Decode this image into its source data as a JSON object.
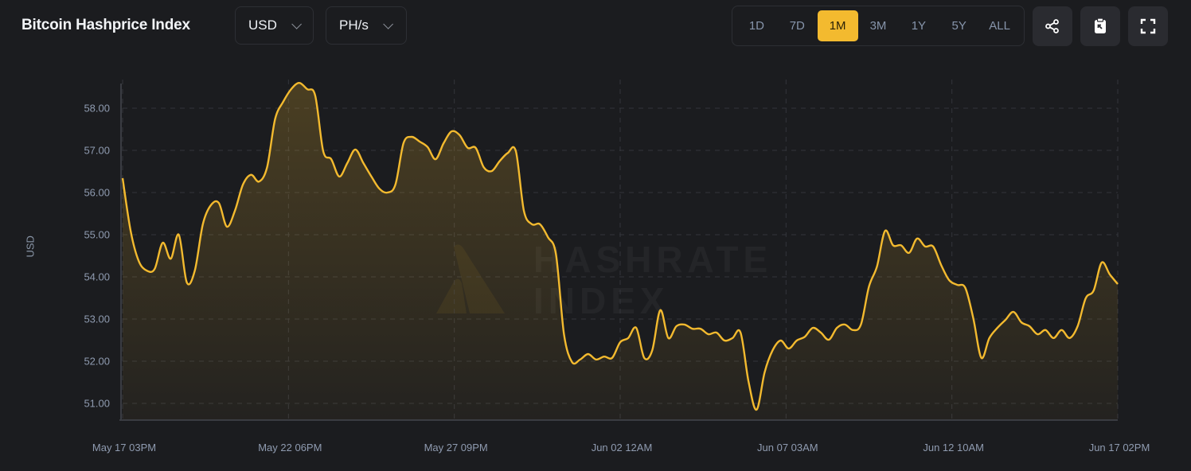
{
  "header": {
    "title": "Bitcoin Hashprice Index",
    "currency": "USD",
    "unit": "PH/s",
    "ranges": [
      "1D",
      "7D",
      "1M",
      "3M",
      "1Y",
      "5Y",
      "ALL"
    ],
    "active_range": "1M",
    "icons": [
      "share-icon",
      "clipboard-icon",
      "fullscreen-icon"
    ]
  },
  "watermark": "HASHRATE INDEX",
  "colors": {
    "line": "#f3ba2f",
    "background": "#1b1c1f",
    "active_range": "#f3ba2f"
  },
  "chart_data": {
    "type": "area",
    "title": "Bitcoin Hashprice Index",
    "ylabel": "USD",
    "ylim": [
      50.8,
      58.65
    ],
    "yticks": [
      "51.00",
      "52.00",
      "53.00",
      "54.00",
      "55.00",
      "56.00",
      "57.00",
      "58.00"
    ],
    "xticks": [
      "May 17 03PM",
      "May 22 06PM",
      "May 27 09PM",
      "Jun 02 12AM",
      "Jun 07 03AM",
      "Jun 12 10AM",
      "Jun 17 02PM"
    ],
    "x_start": "May 17 03PM",
    "x_end": "Jun 17 02PM",
    "sampling": "approx. every 6 hours",
    "grid": true,
    "series": [
      {
        "values": [
          56.34,
          55.09,
          54.38,
          54.15,
          54.19,
          54.81,
          54.43,
          55.0,
          53.87,
          54.15,
          55.25,
          55.7,
          55.75,
          55.19,
          55.57,
          56.19,
          56.42,
          56.26,
          56.6,
          57.74,
          58.15,
          58.45,
          58.6,
          58.45,
          58.3,
          56.98,
          56.79,
          56.38,
          56.7,
          57.02,
          56.7,
          56.38,
          56.09,
          56.0,
          56.19,
          57.17,
          57.32,
          57.21,
          57.08,
          56.79,
          57.17,
          57.45,
          57.36,
          57.06,
          57.06,
          56.6,
          56.51,
          56.75,
          56.94,
          56.98,
          55.57,
          55.25,
          55.25,
          54.94,
          54.53,
          52.64,
          51.98,
          52.04,
          52.17,
          52.04,
          52.11,
          52.08,
          52.45,
          52.55,
          52.79,
          52.08,
          52.26,
          53.21,
          52.55,
          52.83,
          52.87,
          52.77,
          52.77,
          52.64,
          52.68,
          52.49,
          52.55,
          52.68,
          51.51,
          50.85,
          51.74,
          52.26,
          52.49,
          52.3,
          52.49,
          52.58,
          52.79,
          52.68,
          52.51,
          52.79,
          52.87,
          52.74,
          52.87,
          53.77,
          54.25,
          55.09,
          54.75,
          54.75,
          54.57,
          54.91,
          54.72,
          54.72,
          54.28,
          53.92,
          53.81,
          53.74,
          53.02,
          52.08,
          52.55,
          52.79,
          52.98,
          53.17,
          52.92,
          52.83,
          52.64,
          52.74,
          52.55,
          52.74,
          52.55,
          52.83,
          53.49,
          53.68,
          54.34,
          54.06,
          53.83
        ]
      }
    ]
  }
}
